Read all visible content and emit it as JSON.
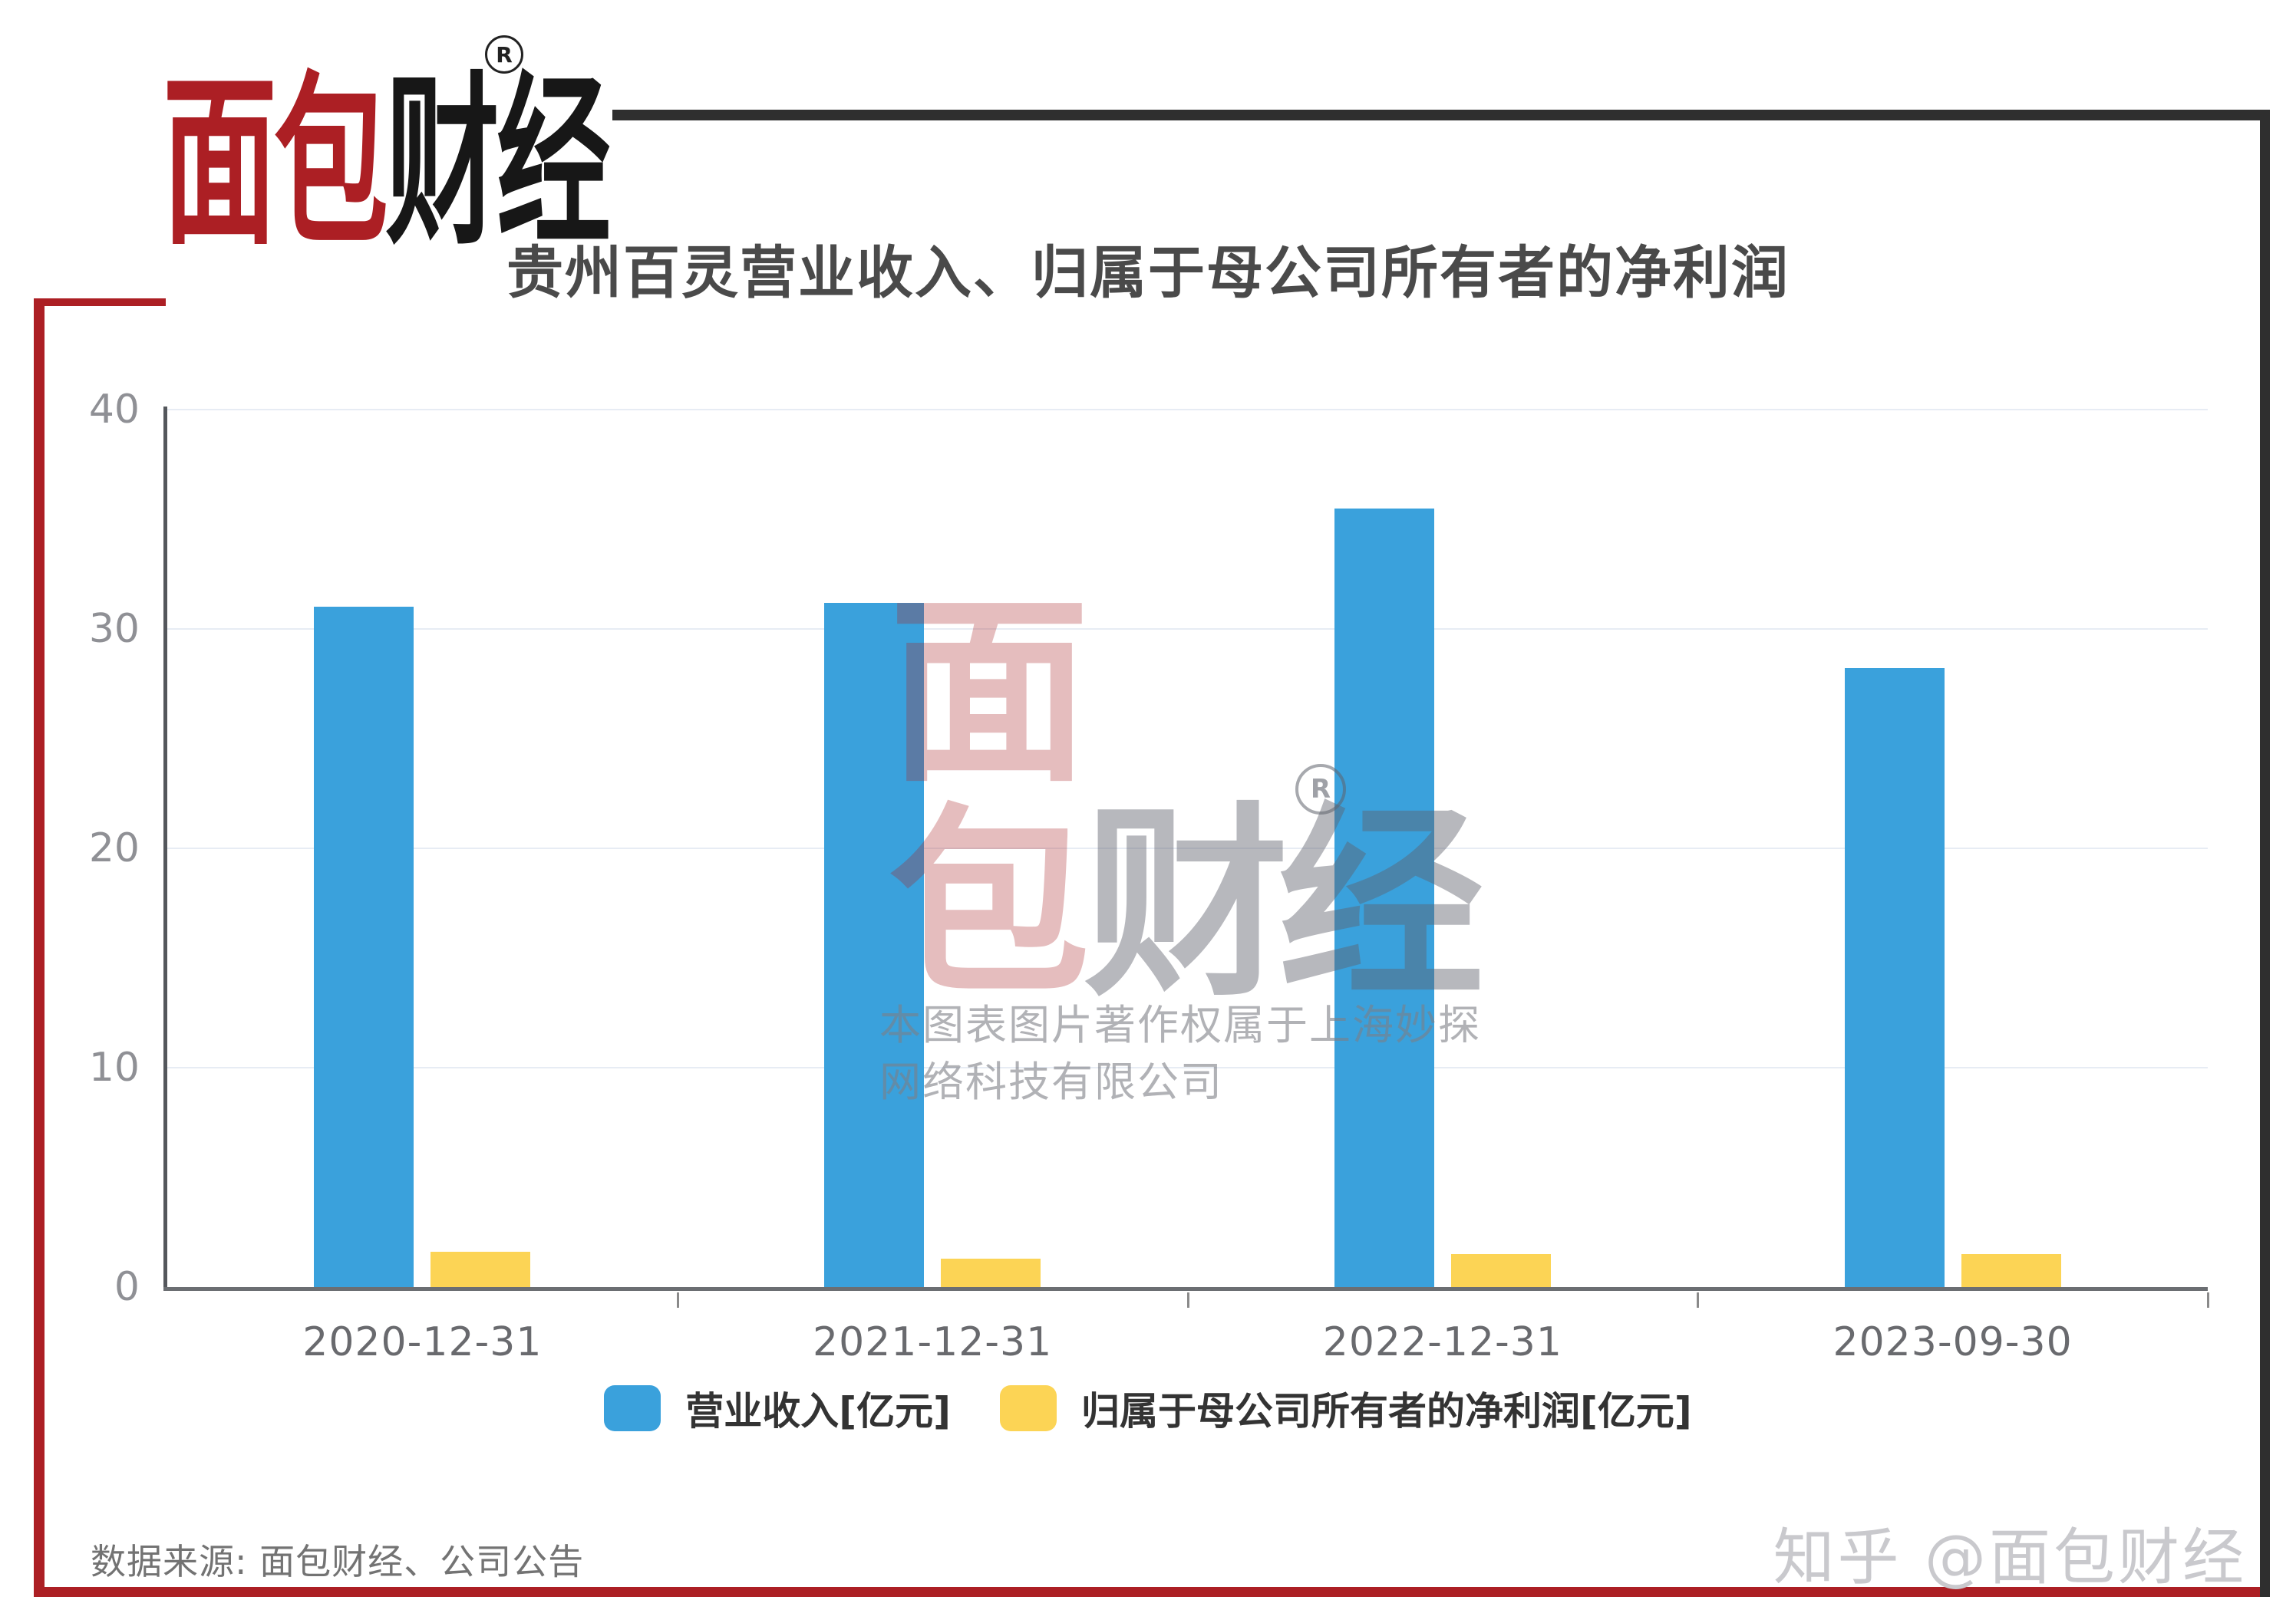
{
  "brand": {
    "logo_red": "面包",
    "logo_black": "财经",
    "reg_mark": "®"
  },
  "chart_data": {
    "type": "bar",
    "title": "贵州百灵营业收入、归属于母公司所有者的净利润",
    "categories": [
      "2020-12-31",
      "2021-12-31",
      "2022-12-31",
      "2023-09-30"
    ],
    "series": [
      {
        "name": "营业收入[亿元]",
        "color": "#3AA1DC",
        "values": [
          31.0,
          31.2,
          35.5,
          28.2
        ]
      },
      {
        "name": "归属于母公司所有者的净利润[亿元]",
        "color": "#FCD455",
        "values": [
          1.6,
          1.3,
          1.5,
          1.5
        ]
      }
    ],
    "ylim": [
      0,
      40
    ],
    "yticks": [
      0,
      10,
      20,
      30,
      40
    ],
    "grid": true,
    "legend_position": "bottom"
  },
  "watermark": {
    "char_top": "面",
    "char_bottom": "包",
    "chars_dark": "财经",
    "reg_mark": "®",
    "copyright_line1": "本图表图片著作权属于上海妙探",
    "copyright_line2": "网络科技有限公司"
  },
  "footer": {
    "source": "数据来源: 面包财经、公司公告",
    "zhihu": "知乎 @面包财经"
  },
  "colors": {
    "accent_red": "#AC1F24",
    "bar_blue": "#3AA1DC",
    "bar_yellow": "#FCD455"
  }
}
